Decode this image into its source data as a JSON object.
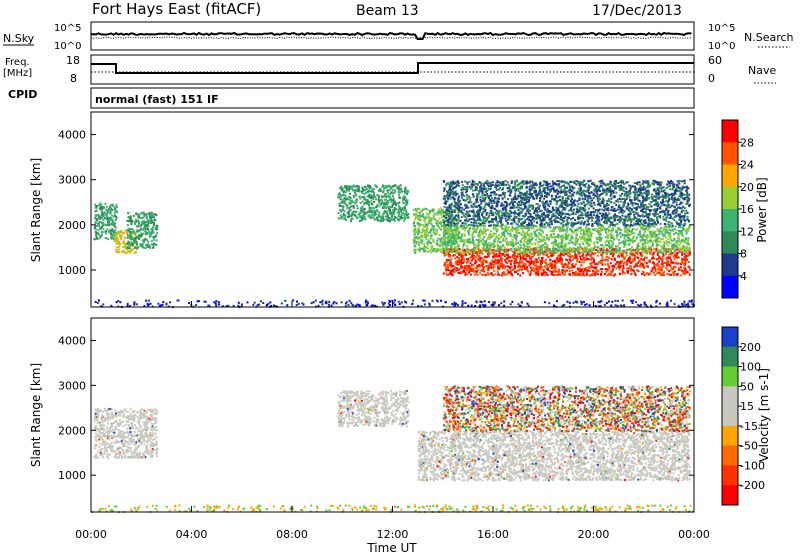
{
  "header": {
    "title": "Fort Hays East (fitACF)",
    "beam": "Beam 13",
    "date": "17/Dec/2013"
  },
  "status_panels": {
    "nsky_label": "N.Sky",
    "nsearch_label": "N.Search",
    "nsky_ticks": [
      "10^5",
      "10^0"
    ],
    "nsearch_ticks": [
      "10^5",
      "10^0"
    ],
    "freq_label": "Freq.",
    "freq_unit": "[MHz]",
    "freq_ticks": [
      "18",
      "8"
    ],
    "nave_label": "Nave",
    "nave_ticks": [
      "60",
      "0"
    ],
    "cpid_label": "CPID",
    "cpid_value": "normal (fast) 151 IF"
  },
  "chart_data": [
    {
      "type": "heatmap",
      "name": "power",
      "ylabel": "Slant Range [km]",
      "xlabel": "",
      "ylim": [
        180,
        4500
      ],
      "yticks": [
        1000,
        2000,
        3000,
        4000
      ],
      "xlim": [
        0,
        24
      ],
      "colorbar": {
        "label": "Power [dB]",
        "ticks": [
          "28",
          "24",
          "20",
          "16",
          "12",
          "8",
          "4"
        ],
        "colors": [
          "#ff0000",
          "#ff5500",
          "#ffa500",
          "#9acd32",
          "#3cb371",
          "#2e8b57",
          "#1e3a8a",
          "#0000ff"
        ]
      },
      "regions": [
        {
          "t": [
            0.1,
            1.0
          ],
          "r": [
            1700,
            2500
          ],
          "level": 2
        },
        {
          "t": [
            0.9,
            1.8
          ],
          "r": [
            1400,
            1900
          ],
          "level": 4
        },
        {
          "t": [
            1.4,
            2.6
          ],
          "r": [
            1500,
            2300
          ],
          "level": 2
        },
        {
          "t": [
            9.8,
            12.6
          ],
          "r": [
            2100,
            2900
          ],
          "level": 2
        },
        {
          "t": [
            12.8,
            14.6
          ],
          "r": [
            1400,
            2400
          ],
          "level": 3
        },
        {
          "t": [
            14.0,
            23.8
          ],
          "r": [
            900,
            1500
          ],
          "level": 6
        },
        {
          "t": [
            14.0,
            23.8
          ],
          "r": [
            1400,
            2000
          ],
          "level": 3
        },
        {
          "t": [
            14.0,
            23.8
          ],
          "r": [
            2000,
            3000
          ],
          "level": 1
        }
      ]
    },
    {
      "type": "heatmap",
      "name": "velocity",
      "ylabel": "Slant Range [km]",
      "xlabel": "Time UT",
      "ylim": [
        180,
        4500
      ],
      "yticks": [
        1000,
        2000,
        3000,
        4000
      ],
      "xlim": [
        0,
        24
      ],
      "xticks": [
        "00:00",
        "04:00",
        "08:00",
        "12:00",
        "16:00",
        "20:00",
        "00:00"
      ],
      "colorbar": {
        "label": "Velocity [m s-1]",
        "ticks": [
          "200",
          "100",
          "50",
          "15",
          "-15",
          "-50",
          "-100",
          "-200"
        ],
        "colors": [
          "#1a3fc8",
          "#2e8b57",
          "#66cc33",
          "#c8c8c0",
          "#c8c8c0",
          "#ffa500",
          "#ff6a00",
          "#ff3300",
          "#ff0000"
        ]
      },
      "regions": [
        {
          "t": [
            0.1,
            2.6
          ],
          "r": [
            1400,
            2500
          ],
          "level": "ground-scatter"
        },
        {
          "t": [
            9.8,
            12.6
          ],
          "r": [
            2100,
            2900
          ],
          "level": "ground-scatter"
        },
        {
          "t": [
            13.0,
            23.8
          ],
          "r": [
            900,
            2000
          ],
          "level": "ground-scatter"
        },
        {
          "t": [
            14.0,
            23.8
          ],
          "r": [
            2000,
            3000
          ],
          "level": "mixed"
        }
      ]
    }
  ]
}
